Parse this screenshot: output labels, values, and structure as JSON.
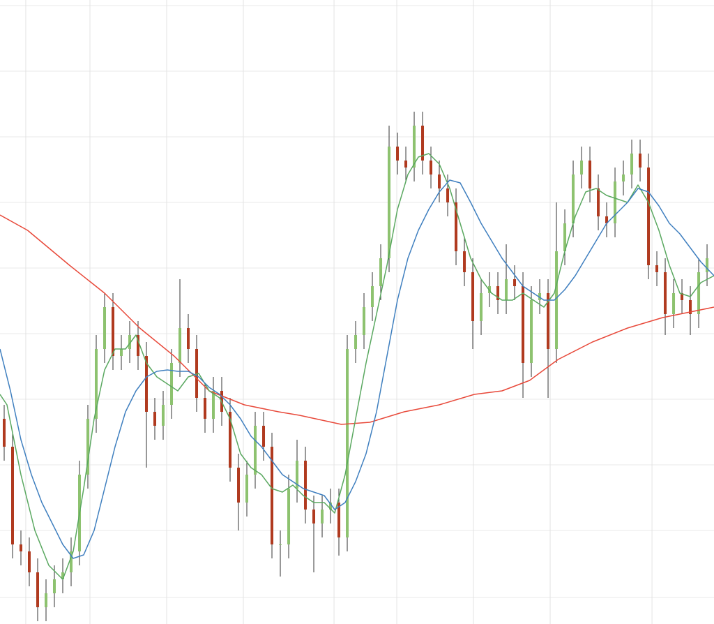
{
  "chart_data": {
    "type": "candlestick",
    "xlim": [
      -0.5,
      84.83
    ],
    "ylim": [
      0,
      894
    ],
    "xticks": [
      2.58,
      10.25,
      19.42,
      28.58,
      39.42,
      46.92,
      56.08,
      65.25,
      77.42
    ],
    "yticks": [
      38,
      134,
      228,
      322,
      416,
      510,
      604,
      698,
      792,
      886
    ],
    "grid": true,
    "up_color": "#8dc26f",
    "down_color": "#b03a1f",
    "wick_color": "#333333",
    "open": [
      294,
      254,
      114,
      104,
      74,
      24,
      44,
      64,
      74,
      104,
      214,
      294,
      394,
      454,
      384,
      394,
      414,
      384,
      304,
      284,
      314,
      374,
      424,
      394,
      324,
      294,
      334,
      304,
      224,
      174,
      214,
      284,
      254,
      114,
      114,
      194,
      234,
      164,
      144,
      164,
      174,
      124,
      394,
      414,
      454,
      484,
      524,
      684,
      664,
      654,
      714,
      664,
      644,
      624,
      604,
      534,
      504,
      434,
      474,
      484,
      464,
      494,
      484,
      374,
      464,
      474,
      394,
      534,
      574,
      644,
      664,
      624,
      584,
      574,
      634,
      644,
      674,
      654,
      514,
      504,
      444,
      474,
      464,
      444,
      504
    ],
    "high": [
      314,
      274,
      134,
      124,
      94,
      64,
      84,
      94,
      124,
      234,
      314,
      414,
      474,
      474,
      414,
      434,
      434,
      404,
      324,
      334,
      394,
      494,
      444,
      414,
      344,
      354,
      354,
      324,
      244,
      234,
      304,
      304,
      274,
      134,
      214,
      264,
      254,
      184,
      184,
      194,
      194,
      414,
      434,
      474,
      504,
      544,
      714,
      704,
      684,
      734,
      734,
      684,
      664,
      644,
      624,
      554,
      524,
      494,
      504,
      504,
      544,
      514,
      504,
      484,
      494,
      494,
      604,
      594,
      664,
      684,
      684,
      644,
      604,
      654,
      664,
      694,
      694,
      674,
      534,
      524,
      494,
      494,
      484,
      524,
      544
    ],
    "low": [
      234,
      94,
      84,
      54,
      4,
      4,
      24,
      44,
      54,
      84,
      194,
      274,
      374,
      364,
      364,
      374,
      364,
      224,
      264,
      264,
      294,
      354,
      374,
      304,
      274,
      274,
      284,
      204,
      134,
      154,
      194,
      234,
      94,
      68,
      94,
      174,
      144,
      74,
      124,
      144,
      98,
      104,
      374,
      394,
      434,
      464,
      504,
      644,
      634,
      634,
      644,
      624,
      604,
      584,
      514,
      484,
      394,
      414,
      454,
      444,
      444,
      464,
      324,
      354,
      444,
      324,
      374,
      514,
      554,
      624,
      604,
      564,
      554,
      554,
      614,
      624,
      634,
      494,
      484,
      414,
      424,
      444,
      414,
      424,
      484
    ],
    "close": [
      254,
      114,
      104,
      74,
      24,
      44,
      64,
      74,
      104,
      214,
      294,
      394,
      454,
      384,
      394,
      414,
      384,
      304,
      284,
      314,
      374,
      424,
      394,
      324,
      294,
      334,
      304,
      224,
      174,
      214,
      284,
      254,
      114,
      114,
      194,
      234,
      164,
      144,
      164,
      174,
      124,
      394,
      414,
      454,
      484,
      524,
      684,
      664,
      654,
      714,
      664,
      644,
      624,
      604,
      534,
      504,
      434,
      474,
      484,
      464,
      494,
      484,
      374,
      464,
      474,
      394,
      534,
      574,
      644,
      664,
      624,
      584,
      574,
      634,
      644,
      674,
      654,
      514,
      504,
      444,
      474,
      464,
      444,
      504,
      524
    ],
    "series": [
      {
        "color": "#e8493a",
        "x": [
          -0.5,
          2.8,
          7.8,
          12,
          16.2,
          20.3,
          24.5,
          28.7,
          32.8,
          35.3,
          40.3,
          43.7,
          47.8,
          52,
          56.2,
          59.5,
          62.8,
          66.2,
          70.3,
          74.5,
          78.7,
          84.83
        ],
        "values": [
          586,
          564,
          514,
          474,
          424,
          384,
          334,
          314,
          304,
          299,
          286,
          289,
          304,
          314,
          329,
          334,
          349,
          379,
          404,
          424,
          439,
          454
        ]
      },
      {
        "color": "#5aa860",
        "x": [
          -0.5,
          0.33,
          2,
          3.67,
          5.33,
          7,
          8.25,
          9.5,
          10.75,
          12,
          13.25,
          14.5,
          15.75,
          17,
          18.25,
          19.5,
          20.75,
          22,
          23.25,
          24.5,
          25.75,
          27,
          28.25,
          29.5,
          30.75,
          32,
          33.25,
          34.5,
          35.75,
          37,
          38.25,
          39.5,
          40.75,
          42,
          43.25,
          44.5,
          45.75,
          47,
          48.25,
          49.5,
          50.75,
          52,
          53.25,
          54.5,
          55.75,
          57,
          58.25,
          59.5,
          60.75,
          62,
          63.25,
          64.5,
          65.75,
          67,
          68.25,
          69.5,
          70.75,
          72,
          73.25,
          74.5,
          75.75,
          77,
          78.25,
          79.5,
          80.75,
          82,
          83.25,
          84.83
        ],
        "values": [
          329,
          314,
          214,
          134,
          84,
          64,
          104,
          194,
          294,
          364,
          394,
          394,
          414,
          374,
          354,
          344,
          334,
          354,
          359,
          334,
          324,
          294,
          244,
          224,
          214,
          194,
          189,
          199,
          184,
          174,
          174,
          159,
          214,
          294,
          374,
          444,
          514,
          594,
          644,
          669,
          674,
          659,
          624,
          574,
          524,
          494,
          474,
          464,
          464,
          474,
          464,
          454,
          474,
          534,
          584,
          619,
          624,
          614,
          609,
          604,
          629,
          604,
          564,
          514,
          474,
          469,
          489,
          499
        ]
      },
      {
        "color": "#3f7fbf",
        "x": [
          -0.5,
          0.75,
          2,
          3.25,
          4.5,
          5.75,
          7,
          8.25,
          9.5,
          10.75,
          12,
          13.25,
          14.5,
          15.75,
          17,
          18.25,
          19.5,
          20.75,
          22,
          23.25,
          24.5,
          25.75,
          27,
          28.25,
          29.5,
          30.75,
          32,
          33.25,
          34.5,
          35.75,
          37,
          38.25,
          39.5,
          40.75,
          42,
          43.25,
          44.5,
          45.75,
          47,
          48.25,
          49.5,
          50.75,
          52,
          53.25,
          54.5,
          55.75,
          57,
          58.25,
          59.5,
          60.75,
          62,
          63.25,
          64.5,
          65.75,
          67,
          68.25,
          69.5,
          70.75,
          72,
          73.25,
          74.5,
          75.75,
          77,
          78.25,
          79.5,
          80.75,
          82,
          83.25,
          84.83
        ],
        "values": [
          394,
          334,
          264,
          214,
          174,
          144,
          114,
          94,
          99,
          134,
          194,
          254,
          304,
          334,
          354,
          362,
          364,
          362,
          362,
          354,
          339,
          329,
          314,
          294,
          269,
          254,
          234,
          214,
          204,
          194,
          189,
          184,
          164,
          174,
          204,
          244,
          304,
          384,
          464,
          524,
          564,
          594,
          619,
          636,
          632,
          604,
          574,
          549,
          524,
          504,
          484,
          474,
          464,
          464,
          479,
          499,
          524,
          549,
          574,
          589,
          604,
          624,
          619,
          599,
          574,
          559,
          539,
          519,
          499
        ]
      }
    ]
  }
}
